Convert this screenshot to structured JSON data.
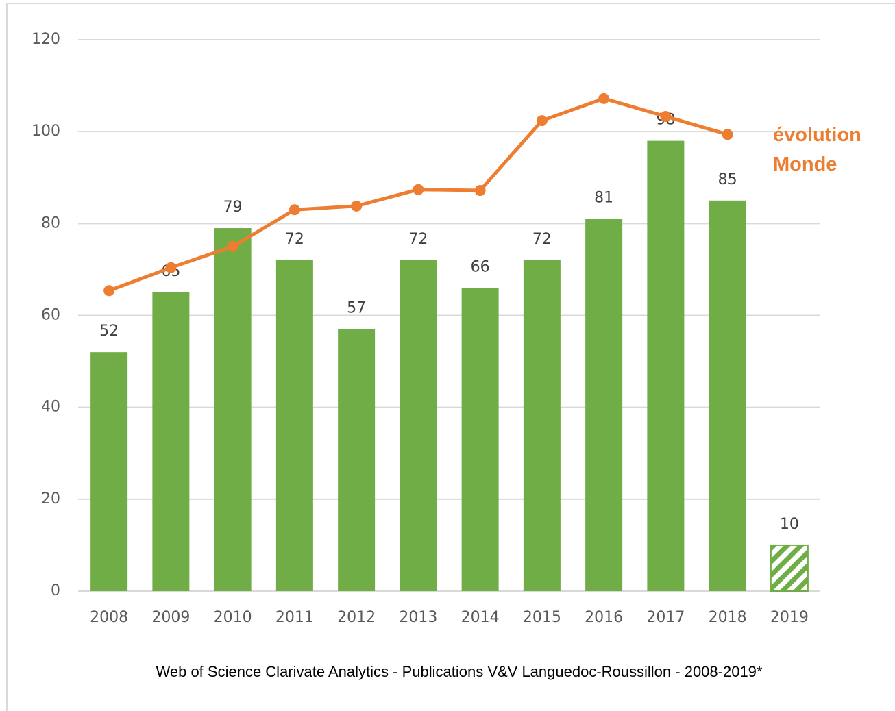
{
  "chart_data": {
    "type": "bar+line",
    "caption": "Web of Science Clarivate Analytics - Publications V&V Languedoc-Roussillon - 2008-2019*",
    "categories": [
      "2008",
      "2009",
      "2010",
      "2011",
      "2012",
      "2013",
      "2014",
      "2015",
      "2016",
      "2017",
      "2018",
      "2019"
    ],
    "series": [
      {
        "type": "bar",
        "color": "#70ad47",
        "values": [
          52,
          65,
          79,
          72,
          57,
          72,
          66,
          72,
          81,
          98,
          85,
          10
        ],
        "hatched": [
          false,
          false,
          false,
          false,
          false,
          false,
          false,
          false,
          false,
          false,
          false,
          true
        ]
      },
      {
        "type": "line",
        "name": "évolution Monde",
        "color": "#ed7d31",
        "values": [
          65.4,
          70.4,
          75,
          83,
          83.8,
          87.4,
          87.2,
          102.4,
          107.2,
          103.3,
          99.4,
          null
        ]
      }
    ],
    "ylim": [
      0,
      120
    ],
    "yticks": [
      0,
      20,
      40,
      60,
      80,
      100,
      120
    ],
    "grid": true,
    "data_labels": true
  }
}
